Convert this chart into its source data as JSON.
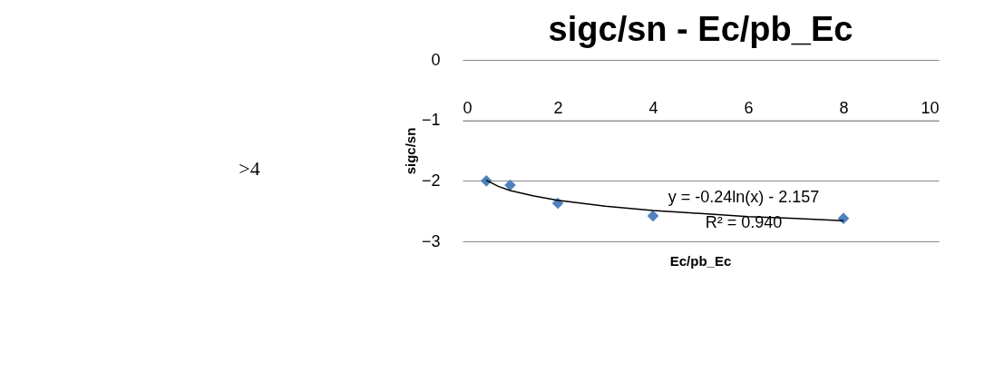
{
  "chart_data": {
    "type": "scatter",
    "title": "sigc/sn - Ec/pb_Ec",
    "xlabel": "Ec/pb_Ec",
    "ylabel": "sigc/sn",
    "x": [
      0.5,
      1,
      2,
      4,
      8
    ],
    "series": [
      {
        "color": "#4f81bd",
        "marker": "diamond",
        "values": [
          -2.0,
          -2.07,
          -2.37,
          -2.58,
          -2.62
        ]
      },
      {
        "type": "line",
        "color": "#000000",
        "marker": "none",
        "x": [
          0.5,
          0.75,
          1,
          1.5,
          2,
          3,
          4,
          5,
          6,
          7,
          8
        ],
        "values": [
          -1.99,
          -2.09,
          -2.16,
          -2.25,
          -2.32,
          -2.42,
          -2.49,
          -2.54,
          -2.59,
          -2.62,
          -2.66
        ]
      }
    ],
    "xlim": [
      0,
      10
    ],
    "xticks": [
      0,
      2,
      4,
      6,
      8,
      10
    ],
    "ylim": [
      -3,
      0
    ],
    "yticks": [
      -3,
      -2,
      -1,
      0
    ],
    "grid": "y",
    "annotations": [
      ">4",
      "y = -0.24ln(x) - 2.157",
      "R² = 0.940"
    ]
  }
}
